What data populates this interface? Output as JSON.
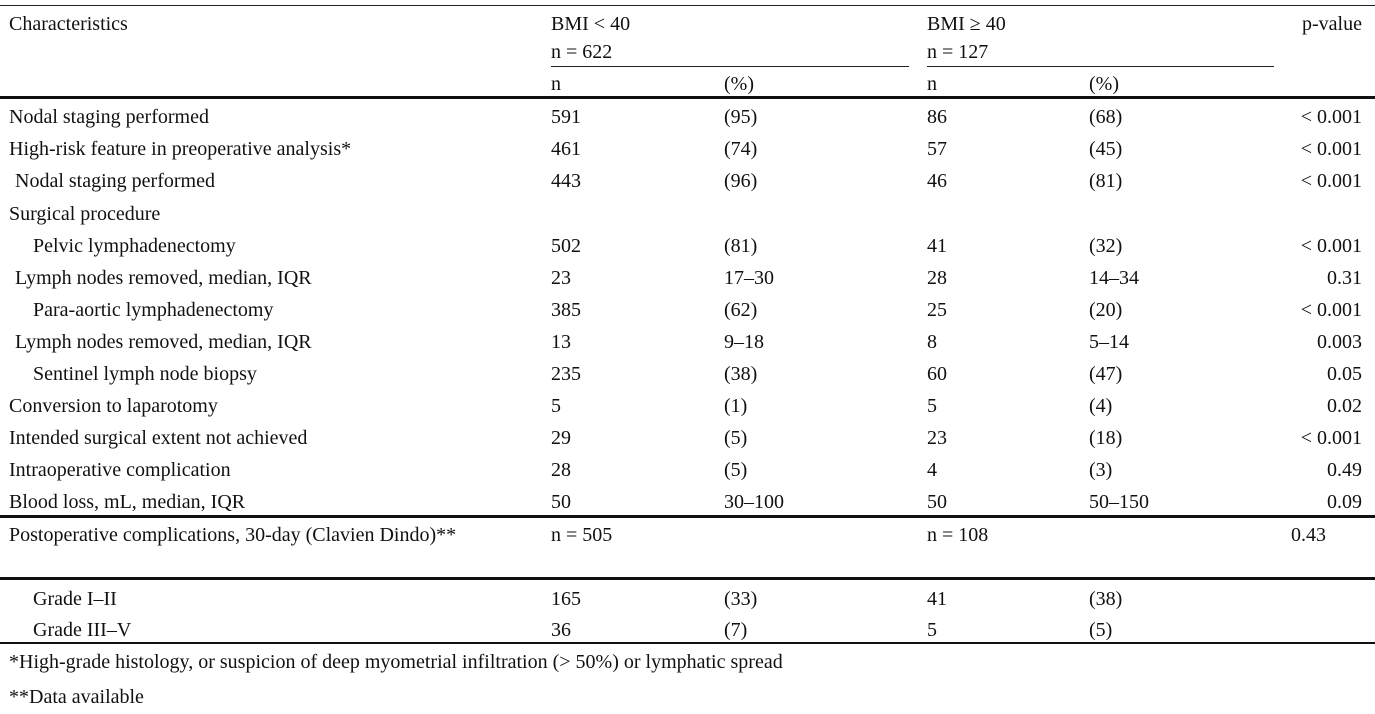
{
  "header": {
    "characteristics": "Characteristics",
    "group1_title": "BMI < 40",
    "group1_n": "n = 622",
    "group2_title": "BMI ≥ 40",
    "group2_n": "n = 127",
    "pvalue": "p-value",
    "n_col": "n",
    "pct_col": "(%)"
  },
  "rows": [
    {
      "label": "Nodal staging performed",
      "n1": "591",
      "p1": "(95)",
      "n2": "86",
      "p2": "(68)",
      "pv": "< 0.001"
    },
    {
      "label": "High-risk feature in preoperative analysis*",
      "n1": "461",
      "p1": "(74)",
      "n2": "57",
      "p2": "(45)",
      "pv": "< 0.001"
    },
    {
      "label": "Nodal staging performed",
      "n1": "443",
      "p1": "(96)",
      "n2": "46",
      "p2": "(81)",
      "pv": "< 0.001"
    },
    {
      "label": "Surgical procedure",
      "n1": "",
      "p1": "",
      "n2": "",
      "p2": "",
      "pv": ""
    },
    {
      "label": "Pelvic lymphadenectomy",
      "n1": "502",
      "p1": "(81)",
      "n2": "41",
      "p2": "(32)",
      "pv": "< 0.001"
    },
    {
      "label": "Lymph nodes removed, median, IQR",
      "n1": "23",
      "p1": "17–30",
      "n2": "28",
      "p2": "14–34",
      "pv": "0.31"
    },
    {
      "label": "Para-aortic lymphadenectomy",
      "n1": "385",
      "p1": "(62)",
      "n2": "25",
      "p2": "(20)",
      "pv": "< 0.001"
    },
    {
      "label": "Lymph nodes removed, median, IQR",
      "n1": "13",
      "p1": "9–18",
      "n2": "8",
      "p2": "5–14",
      "pv": "0.003"
    },
    {
      "label": "Sentinel lymph node biopsy",
      "n1": "235",
      "p1": "(38)",
      "n2": "60",
      "p2": "(47)",
      "pv": "0.05"
    },
    {
      "label": "Conversion to laparotomy",
      "n1": "5",
      "p1": "(1)",
      "n2": "5",
      "p2": "(4)",
      "pv": "0.02"
    },
    {
      "label": "Intended surgical extent not achieved",
      "n1": "29",
      "p1": "(5)",
      "n2": "23",
      "p2": "(18)",
      "pv": "< 0.001"
    },
    {
      "label": "Intraoperative complication",
      "n1": "28",
      "p1": "(5)",
      "n2": "4",
      "p2": "(3)",
      "pv": "0.49"
    },
    {
      "label": "Blood loss, mL, median, IQR",
      "n1": "50",
      "p1": "30–100",
      "n2": "50",
      "p2": "50–150",
      "pv": "0.09"
    }
  ],
  "postop": {
    "label": "Postoperative complications, 30-day (Clavien Dindo)**",
    "n1": "n = 505",
    "n2": "n = 108",
    "pv": "0.43"
  },
  "grades": [
    {
      "label": "Grade I–II",
      "n1": "165",
      "p1": "(33)",
      "n2": "41",
      "p2": "(38)"
    },
    {
      "label": "Grade III–V",
      "n1": "36",
      "p1": "(7)",
      "n2": "5",
      "p2": "(5)"
    }
  ],
  "footnotes": {
    "note1": "*High-grade histology, or suspicion of deep myometrial infiltration (> 50%) or lymphatic spread",
    "note2": "**Data available"
  }
}
